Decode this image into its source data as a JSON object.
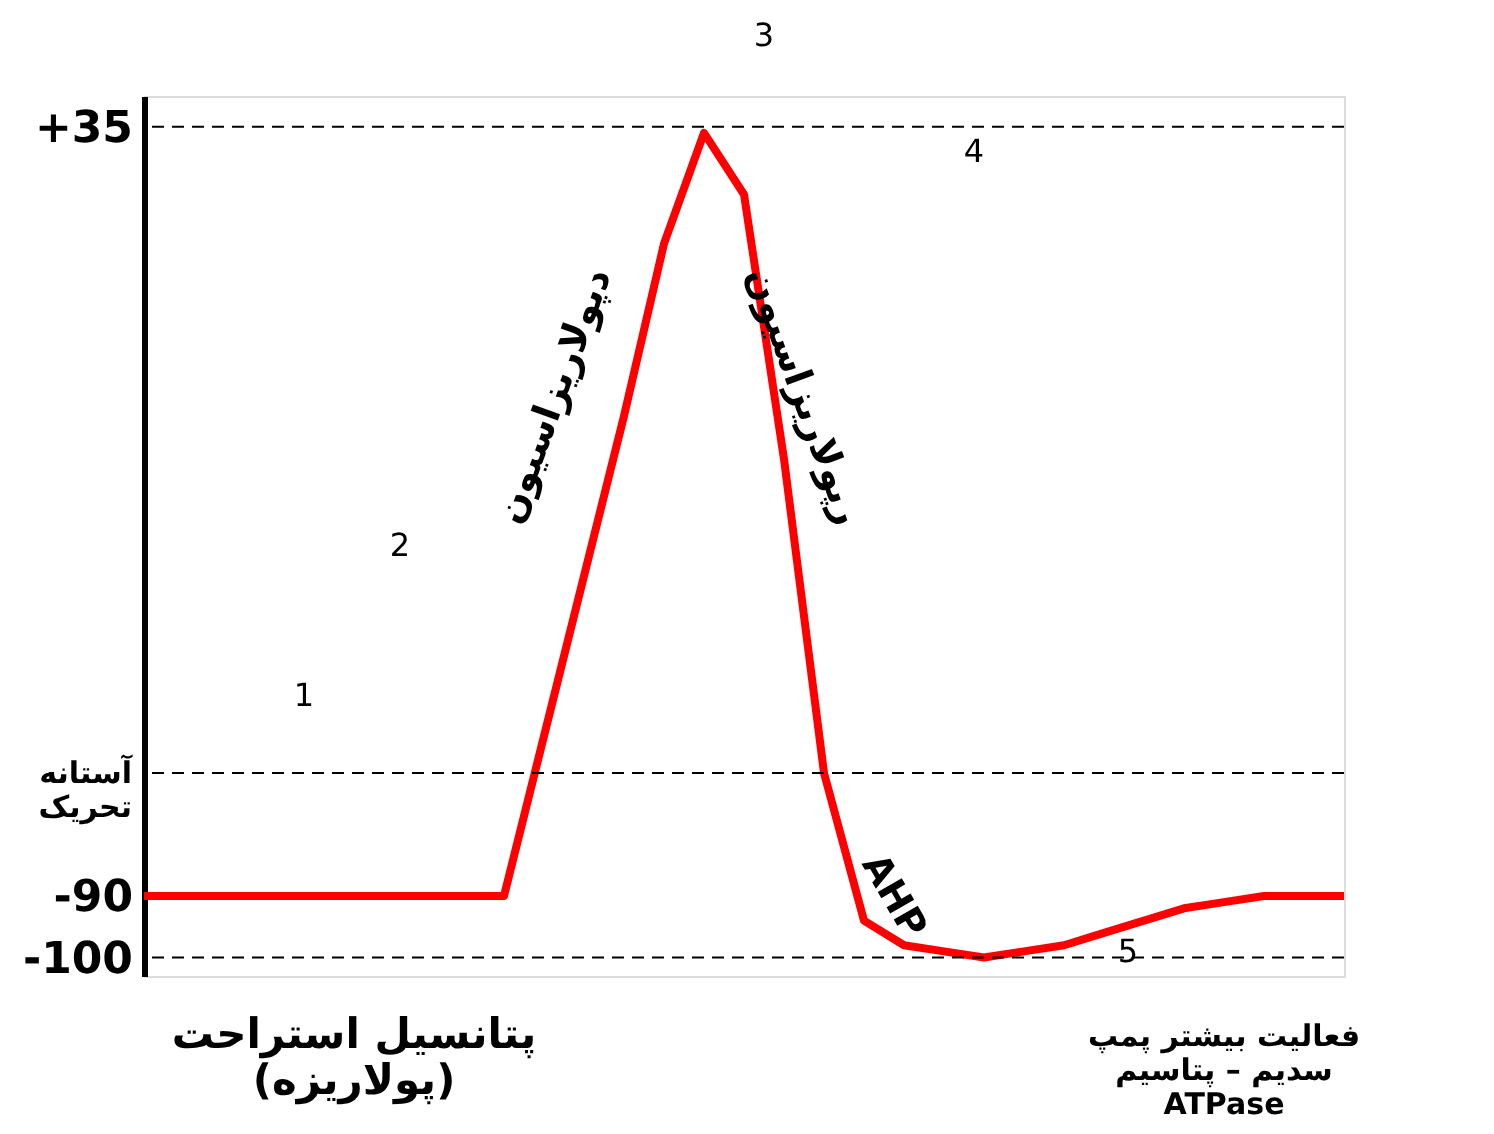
{
  "chart_data": {
    "type": "line",
    "categories": [
      null,
      null,
      null,
      null,
      null,
      null,
      null,
      null,
      null,
      null,
      null,
      null,
      null,
      null,
      null,
      null,
      null,
      null,
      null,
      null,
      null,
      null,
      null,
      null,
      null,
      null,
      null,
      null,
      null,
      null,
      null
    ],
    "series": [
      {
        "color": "#ff0000",
        "values": [
          -90,
          -90,
          -90,
          -90,
          -90,
          -90,
          -90,
          -90,
          -90,
          -90,
          -64,
          -38,
          -12,
          16,
          34,
          24,
          -19,
          -70,
          -94,
          -98,
          -99,
          -100,
          -99,
          -98,
          -96,
          -94,
          -92,
          -91,
          -90,
          -90,
          -90
        ]
      }
    ],
    "ylim": [
      -103,
      40
    ],
    "yticks": [
      {
        "value": 35,
        "label": "+35"
      },
      -90,
      -100
    ],
    "ref_lines": [
      {
        "axis": "y",
        "value": 35,
        "line_style": "dashed",
        "color": "#000000"
      },
      {
        "axis": "y",
        "value": -70,
        "label": "آستانه\nتحریک",
        "line_style": "dashed",
        "color": "#000000"
      },
      {
        "axis": "y",
        "value": -100,
        "line_style": "dashed",
        "color": "#000000"
      }
    ],
    "annotations": [
      "1",
      "2",
      "3",
      "4",
      "5",
      "دپولاریزاسیون",
      "رپولاریزاسیون",
      "پتانسیل استراحت\n(پولاریزه)",
      "AHP",
      "فعالیت بیشتر پمپ\nسدیم – پتاسیم\nATPase"
    ],
    "grid": false,
    "marker": "none",
    "line_style": "solid"
  }
}
